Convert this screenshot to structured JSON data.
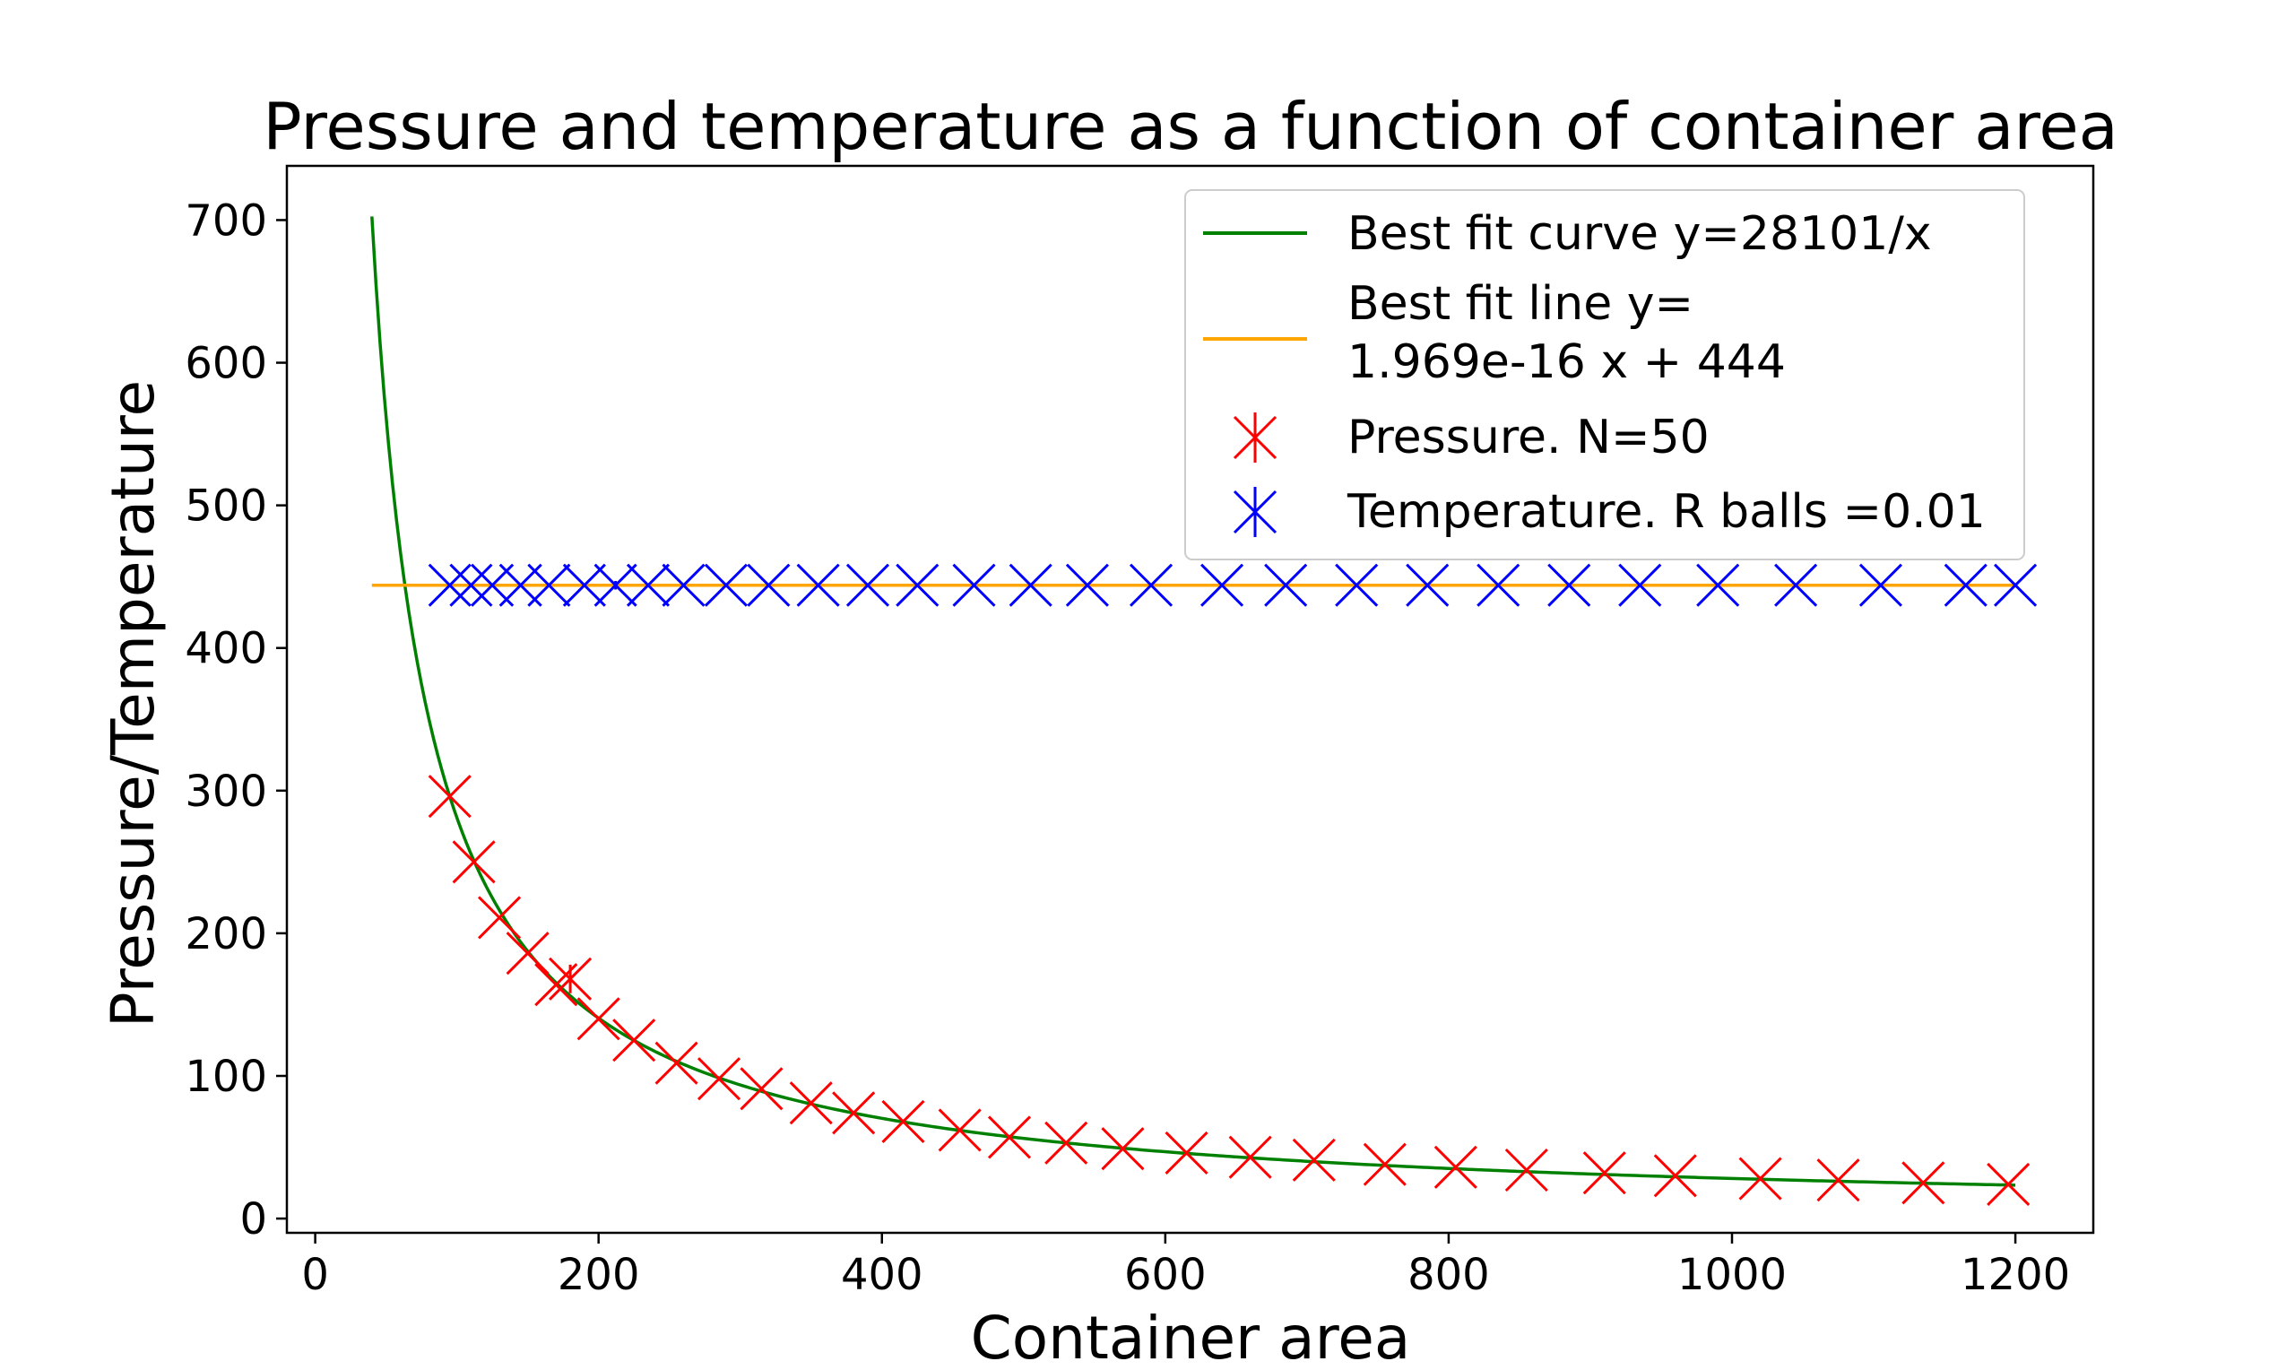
{
  "chart_data": {
    "type": "scatter",
    "title": "Pressure and temperature as a function of container area",
    "xlabel": "Container area",
    "ylabel": "Pressure/Temperature",
    "xlim": [
      -20,
      1255
    ],
    "ylim": [
      -10,
      738
    ],
    "xticks": [
      0,
      200,
      400,
      600,
      800,
      1000,
      1200
    ],
    "yticks": [
      0,
      100,
      200,
      300,
      400,
      500,
      600,
      700
    ],
    "grid": false,
    "legend_position": "top-right",
    "series": [
      {
        "name": "Best fit curve y=28101/x",
        "kind": "line",
        "color": "#008000",
        "function": "28101/x",
        "x_range": [
          40,
          1200
        ]
      },
      {
        "name": "Best fit line y=\n1.969e-16 x + 444",
        "name_lines": [
          "Best fit line y=",
          "1.969e-16 x + 444"
        ],
        "kind": "line",
        "color": "#FFA500",
        "function": "1.969e-16*x + 444",
        "x_range": [
          40,
          1200
        ]
      },
      {
        "name": "Pressure. N=50",
        "kind": "errorbar-x",
        "color": "#FF0000",
        "x": [
          95,
          112,
          130,
          150,
          170,
          180,
          200,
          225,
          255,
          285,
          315,
          350,
          380,
          415,
          455,
          490,
          530,
          570,
          615,
          660,
          705,
          755,
          805,
          855,
          910,
          960,
          1020,
          1075,
          1135,
          1195
        ],
        "y": [
          296,
          250,
          211,
          186,
          164,
          168,
          140,
          125,
          109,
          98,
          91,
          81,
          74,
          68,
          62,
          57,
          53,
          49,
          46,
          43,
          41,
          38,
          36,
          34,
          32,
          30,
          28,
          27,
          25,
          24
        ],
        "yerr": [
          0,
          0,
          0,
          0,
          0,
          10,
          0,
          0,
          0,
          0,
          0,
          0,
          0,
          0,
          0,
          0,
          0,
          0,
          0,
          0,
          0,
          0,
          0,
          0,
          0,
          0,
          0,
          0,
          0,
          0
        ]
      },
      {
        "name": "Temperature. R balls =0.01",
        "kind": "errorbar-x",
        "color": "#0000FF",
        "x": [
          95,
          110,
          125,
          145,
          165,
          190,
          212,
          235,
          260,
          290,
          320,
          355,
          390,
          425,
          465,
          505,
          545,
          590,
          640,
          685,
          735,
          785,
          835,
          885,
          935,
          990,
          1045,
          1105,
          1165,
          1200
        ],
        "y": [
          444,
          444,
          444,
          444,
          444,
          444,
          444,
          444,
          444,
          444,
          444,
          444,
          444,
          444,
          444,
          444,
          444,
          444,
          444,
          444,
          444,
          444,
          444,
          444,
          444,
          444,
          444,
          444,
          444,
          444
        ],
        "yerr": [
          0,
          0,
          0,
          0,
          0,
          0,
          3,
          0,
          0,
          0,
          0,
          0,
          0,
          0,
          0,
          0,
          0,
          0,
          0,
          0,
          0,
          0,
          0,
          0,
          0,
          0,
          0,
          0,
          0,
          0
        ]
      }
    ]
  }
}
